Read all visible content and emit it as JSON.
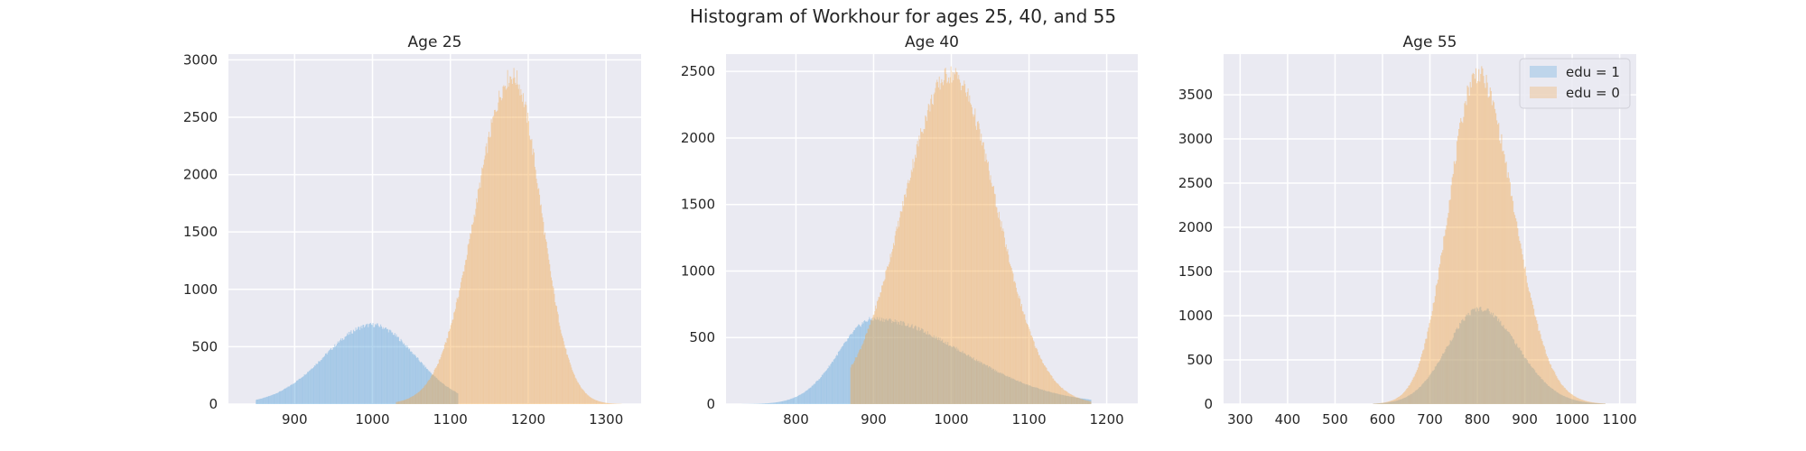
{
  "figure": {
    "title": "Histogram of Workhour for ages 25, 40, and 55"
  },
  "colors": {
    "axes_bg": "#eaeaf2",
    "grid": "#ffffff",
    "edu1": "#5aa5dc",
    "edu0": "#f2a94f"
  },
  "legend": {
    "placement": "upper right of Age 55 panel",
    "entries": [
      "edu = 1",
      "edu = 0"
    ]
  },
  "chart_data": [
    {
      "type": "histogram",
      "title": "Age 25",
      "xlim": [
        815,
        1345
      ],
      "ylim": [
        0,
        3050
      ],
      "xticks": [
        900,
        1000,
        1100,
        1200,
        1300
      ],
      "yticks": [
        0,
        500,
        1000,
        1500,
        2000,
        2500,
        3000
      ],
      "grid": true,
      "series": [
        {
          "legend_key": "edu1",
          "peak_x": 1000,
          "peak_y": 690,
          "spread_left": 62,
          "spread_right": 55,
          "range": [
            850,
            1110
          ],
          "bin_width": 1
        },
        {
          "legend_key": "edu0",
          "peak_x": 1180,
          "peak_y": 2860,
          "spread_left": 47,
          "spread_right": 36,
          "range": [
            1030,
            1320
          ],
          "bin_width": 1
        }
      ]
    },
    {
      "type": "histogram",
      "title": "Age 40",
      "xlim": [
        710,
        1240
      ],
      "ylim": [
        0,
        2630
      ],
      "xticks": [
        800,
        900,
        1000,
        1100,
        1200
      ],
      "yticks": [
        0,
        500,
        1000,
        1500,
        2000,
        2500
      ],
      "grid": true,
      "series": [
        {
          "legend_key": "edu1",
          "peak_x": 900,
          "peak_y": 640,
          "spread_left": 45,
          "spread_right": 115,
          "range": [
            730,
            1180
          ],
          "bin_width": 1
        },
        {
          "legend_key": "edu0",
          "peak_x": 1000,
          "peak_y": 2480,
          "spread_left": 62,
          "spread_right": 58,
          "range": [
            870,
            1180
          ],
          "bin_width": 1
        }
      ]
    },
    {
      "type": "histogram",
      "title": "Age 55",
      "xlim": [
        265,
        1135
      ],
      "ylim": [
        0,
        3960
      ],
      "xticks": [
        300,
        400,
        500,
        600,
        700,
        800,
        900,
        1000,
        1100
      ],
      "yticks": [
        0,
        500,
        1000,
        1500,
        2000,
        2500,
        3000,
        3500
      ],
      "grid": true,
      "series": [
        {
          "legend_key": "edu1",
          "peak_x": 805,
          "peak_y": 1080,
          "spread_left": 68,
          "spread_right": 80,
          "range": [
            580,
            1070
          ],
          "bin_width": 2
        },
        {
          "legend_key": "edu0",
          "peak_x": 800,
          "peak_y": 3740,
          "spread_left": 60,
          "spread_right": 75,
          "range": [
            580,
            1070
          ],
          "bin_width": 2
        }
      ]
    }
  ]
}
